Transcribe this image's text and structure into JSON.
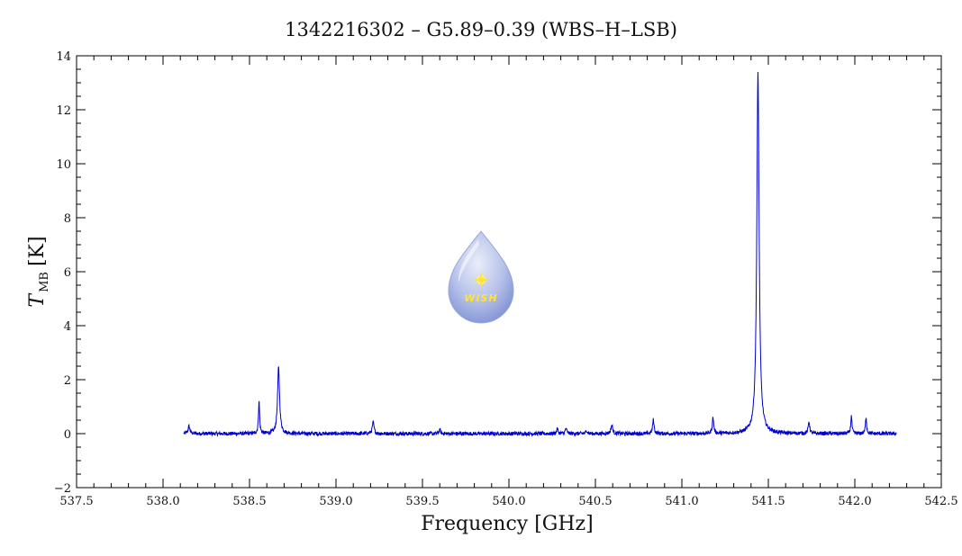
{
  "chart_data": {
    "type": "line",
    "title": "1342216302 – G5.89–0.39 (WBS–H–LSB)",
    "xlabel": "Frequency [GHz]",
    "ylabel_main": "T",
    "ylabel_sub": "MB",
    "ylabel_unit": "[K]",
    "xlim": [
      537.5,
      542.5
    ],
    "ylim": [
      -2,
      14
    ],
    "x_ticks": [
      537.5,
      538.0,
      538.5,
      539.0,
      539.5,
      540.0,
      540.5,
      541.0,
      541.5,
      542.0,
      542.5
    ],
    "x_tick_labels": [
      "537.5",
      "538.0",
      "538.5",
      "539.0",
      "539.5",
      "540.0",
      "540.5",
      "541.0",
      "541.5",
      "542.0",
      "542.5"
    ],
    "y_ticks": [
      -2,
      0,
      2,
      4,
      6,
      8,
      10,
      12,
      14
    ],
    "y_tick_labels": [
      "−2",
      "0",
      "2",
      "4",
      "6",
      "8",
      "10",
      "12",
      "14"
    ],
    "grid": false,
    "series_color": "#0000cc",
    "x_range": [
      538.12,
      542.24
    ],
    "baseline": 0.0,
    "peaks": [
      {
        "x": 538.15,
        "y": 0.28,
        "w": 0.006
      },
      {
        "x": 538.555,
        "y": 1.2,
        "w": 0.004
      },
      {
        "x": 538.668,
        "y": 2.45,
        "w": 0.007
      },
      {
        "x": 539.215,
        "y": 0.42,
        "w": 0.006
      },
      {
        "x": 539.6,
        "y": 0.15,
        "w": 0.005
      },
      {
        "x": 540.28,
        "y": 0.18,
        "w": 0.005
      },
      {
        "x": 540.33,
        "y": 0.2,
        "w": 0.005
      },
      {
        "x": 540.45,
        "y": 0.12,
        "w": 0.005
      },
      {
        "x": 540.595,
        "y": 0.32,
        "w": 0.006
      },
      {
        "x": 540.835,
        "y": 0.52,
        "w": 0.005
      },
      {
        "x": 541.18,
        "y": 0.58,
        "w": 0.005
      },
      {
        "x": 541.44,
        "y": 13.35,
        "w": 0.008
      },
      {
        "x": 541.735,
        "y": 0.45,
        "w": 0.005
      },
      {
        "x": 541.98,
        "y": 0.66,
        "w": 0.004
      },
      {
        "x": 542.065,
        "y": 0.62,
        "w": 0.004
      }
    ]
  },
  "logo": {
    "text": "WISH",
    "colors": {
      "drop_top": "#dfe6f7",
      "drop_bottom": "#8798d8",
      "star": "#ffe23a"
    }
  }
}
